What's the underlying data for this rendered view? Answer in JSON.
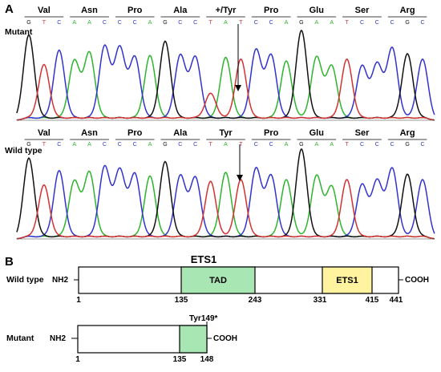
{
  "panel_a": {
    "label": "A",
    "base_colors": {
      "A": "#2db52d",
      "C": "#3232d0",
      "G": "#111111",
      "T": "#d23232"
    },
    "codon_bases": [
      "G",
      "T",
      "C",
      "A",
      "A",
      "C",
      "C",
      "C",
      "A",
      "G",
      "C",
      "C",
      "T",
      "A",
      "T",
      "C",
      "C",
      "A",
      "G",
      "A",
      "A",
      "T",
      "C",
      "C",
      "C",
      "G",
      "C"
    ],
    "mutant": {
      "label": "Mutant",
      "codons": [
        "Val",
        "Asn",
        "Pro",
        "Ala",
        "+/Tyr",
        "Pro",
        "Glu",
        "Ser",
        "Arg"
      ]
    },
    "wild_type": {
      "label": "Wild type",
      "codons": [
        "Val",
        "Asn",
        "Pro",
        "Ala",
        "Tyr",
        "Pro",
        "Glu",
        "Ser",
        "Arg"
      ]
    }
  },
  "panel_b": {
    "label": "B",
    "title": "ETS1",
    "wild_type": {
      "label": "Wild type",
      "n_term": "NH2",
      "c_term": "COOH",
      "length": 441,
      "domains": [
        {
          "name": "TAD",
          "start": 135,
          "end": 243,
          "color": "#a8e6b4"
        },
        {
          "name": "ETS1",
          "start": 331,
          "end": 415,
          "color": "#fff3a0"
        }
      ],
      "positions": [
        "1",
        "135",
        "243",
        "331",
        "415",
        "441"
      ]
    },
    "mutant": {
      "label": "Mutant",
      "n_term": "NH2",
      "c_term": "COOH",
      "length": 148,
      "mutation": "Tyr149*",
      "domains": [
        {
          "name": "",
          "start": 135,
          "end": 148,
          "color": "#a8e6b4"
        }
      ],
      "positions": [
        "1",
        "135",
        "148"
      ]
    }
  }
}
